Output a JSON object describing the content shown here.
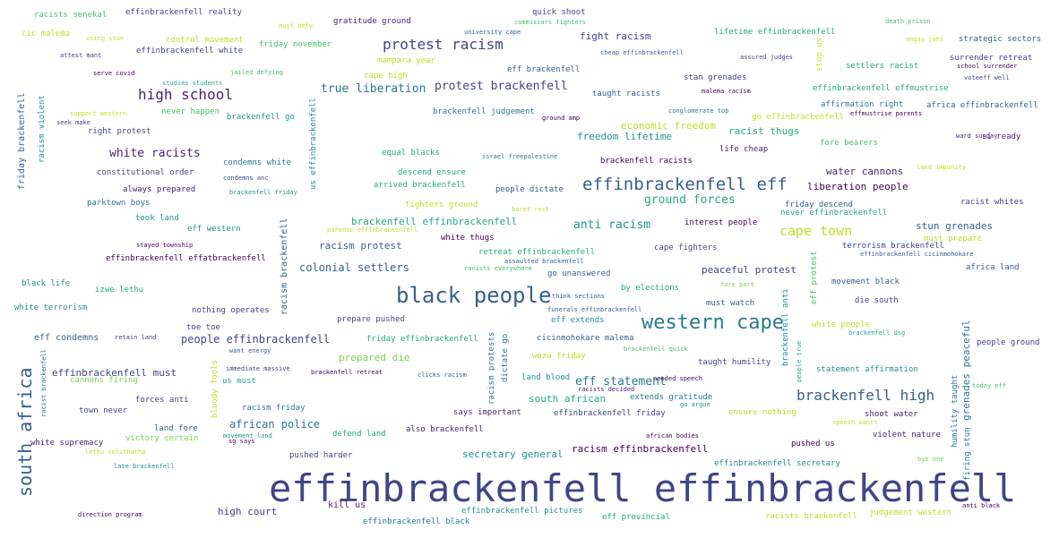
{
  "words": [
    "effinbrackenfell effinbrackenfell",
    "black people",
    "western cape",
    "effinbrackenfell eff",
    "south africa",
    "protest racism",
    "high school",
    "brackenfell high",
    "cape town",
    "protest brackenfell",
    "true liberation",
    "white racists",
    "colonial settlers",
    "people effinbrackenfell",
    "african police",
    "anti racism",
    "ground forces",
    "eff statement",
    "secretary general",
    "racism effinbrackenfell",
    "brackenfell effinbrackenfell",
    "racism brackenfell",
    "grenades peaceful",
    "fight racism",
    "high court",
    "water cannons",
    "liberation people",
    "stun grenades",
    "peaceful protest",
    "racism protest",
    "eff condemns",
    "effinbrackenfell must",
    "prepared die",
    "south african",
    "racist thugs",
    "freedom lifetime",
    "economic freedom",
    "kill us",
    "us effinbrackenfell",
    "racists senekal",
    "effinbrackenfell reality",
    "gratitude ground",
    "quick shoot",
    "cic malema",
    "control movement",
    "friday november",
    "lifetime effinbrackenfell",
    "strategic sectors",
    "effinbrackenfell white",
    "mampara year",
    "settlers racist",
    "surrender retreat",
    "cape high",
    "eff brackenfell",
    "stan grenades",
    "taught racists",
    "brackenfell go",
    "never happen",
    "brackenfell judgement",
    "affirmation right",
    "africa effinbrackenfell",
    "effinbrackenfell effmustrise",
    "right protest",
    "go effinbrackenfell",
    "fore bearers",
    "si ready",
    "constitutional order",
    "always prepared",
    "condemns white",
    "equal blacks",
    "descend ensure",
    "arrived brackenfell",
    "people dictate",
    "brackenfell racists",
    "life cheap",
    "parktown boys",
    "fighters ground",
    "took land",
    "eff western",
    "friday descend",
    "never effinbrackenfell",
    "racist whites",
    "interest people",
    "white thugs",
    "retreat effinbrackenfell",
    "terrorism brackenfell",
    "cape fighters",
    "effinbrackenfell effatbrackenfell",
    "black life",
    "izwe lethu",
    "africa land",
    "go unanswered",
    "by elections",
    "movement black",
    "white terrorism",
    "nothing operates",
    "must watch",
    "die south",
    "prepare pushed",
    "toe toe",
    "eff extends",
    "cicinmohokare malema",
    "people ground",
    "friday effinbrackenfell",
    "woza friday",
    "us must",
    "taught humility",
    "statement affirmation",
    "cannons firing",
    "land blood",
    "forces anti",
    "extends gratitude",
    "town never",
    "racism friday",
    "says important",
    "effinbrackenfell friday",
    "ensure nothing",
    "shoot water",
    "land fore",
    "also brackenfell",
    "violent nature",
    "victory certain",
    "defend land",
    "white supremacy",
    "pushed us",
    "pushed harder",
    "effinbrackenfell secretary",
    "effinbrackenfell pictures",
    "racists brackenfell",
    "judgement western",
    "eff provincial",
    "effinbrackenfell black",
    "friday brackenfell",
    "racism violent",
    "bloody fools",
    "racism protests",
    "dictate go",
    "humility taught",
    "firing stun",
    "eff protest",
    "brackenfell anti",
    "stop us",
    "white people",
    "racist brackenfell",
    "people true",
    "must prepare",
    "ward sunday",
    "must defy",
    "university cape",
    "commissars fighters",
    "death prison",
    "using stun",
    "cheap effinbrackenfell",
    "angay jahi",
    "attest mant",
    "assured judges",
    "school surrender",
    "serve covid",
    "studies students",
    "jailed defying",
    "malema racism",
    "voteeff well",
    "support western",
    "seek make",
    "conglomerate top",
    "ground amp",
    "effmustrise parents",
    "israel freepalestine",
    "land impunity",
    "condemns anc",
    "brackenfell friday",
    "baret rest",
    "parents effinbrackenfell",
    "stayed township",
    "assaulted brackenfell",
    "racists everywhere",
    "effinbrackenfell cicinmohokare",
    "fore part",
    "think sections",
    "funerals effinbrackenfell",
    "retain land",
    "want energy",
    "brackenfell quick",
    "brackenfell dsg",
    "immediate massive",
    "brackenfell retreat",
    "clicks racism",
    "needed speech",
    "racists decided",
    "go argue",
    "today eff",
    "speech wants",
    "movement land",
    "sg says",
    "lethu solithatha",
    "african bodies",
    "bye one",
    "late brackenfell",
    "anti black",
    "direction program"
  ],
  "colors": {
    "background": "#ffffff",
    "palette": [
      "#440154",
      "#482475",
      "#414487",
      "#355f8d",
      "#2a788e",
      "#21918c",
      "#22a884",
      "#44bf70",
      "#7ad151",
      "#bddf26",
      "#fde725"
    ]
  }
}
